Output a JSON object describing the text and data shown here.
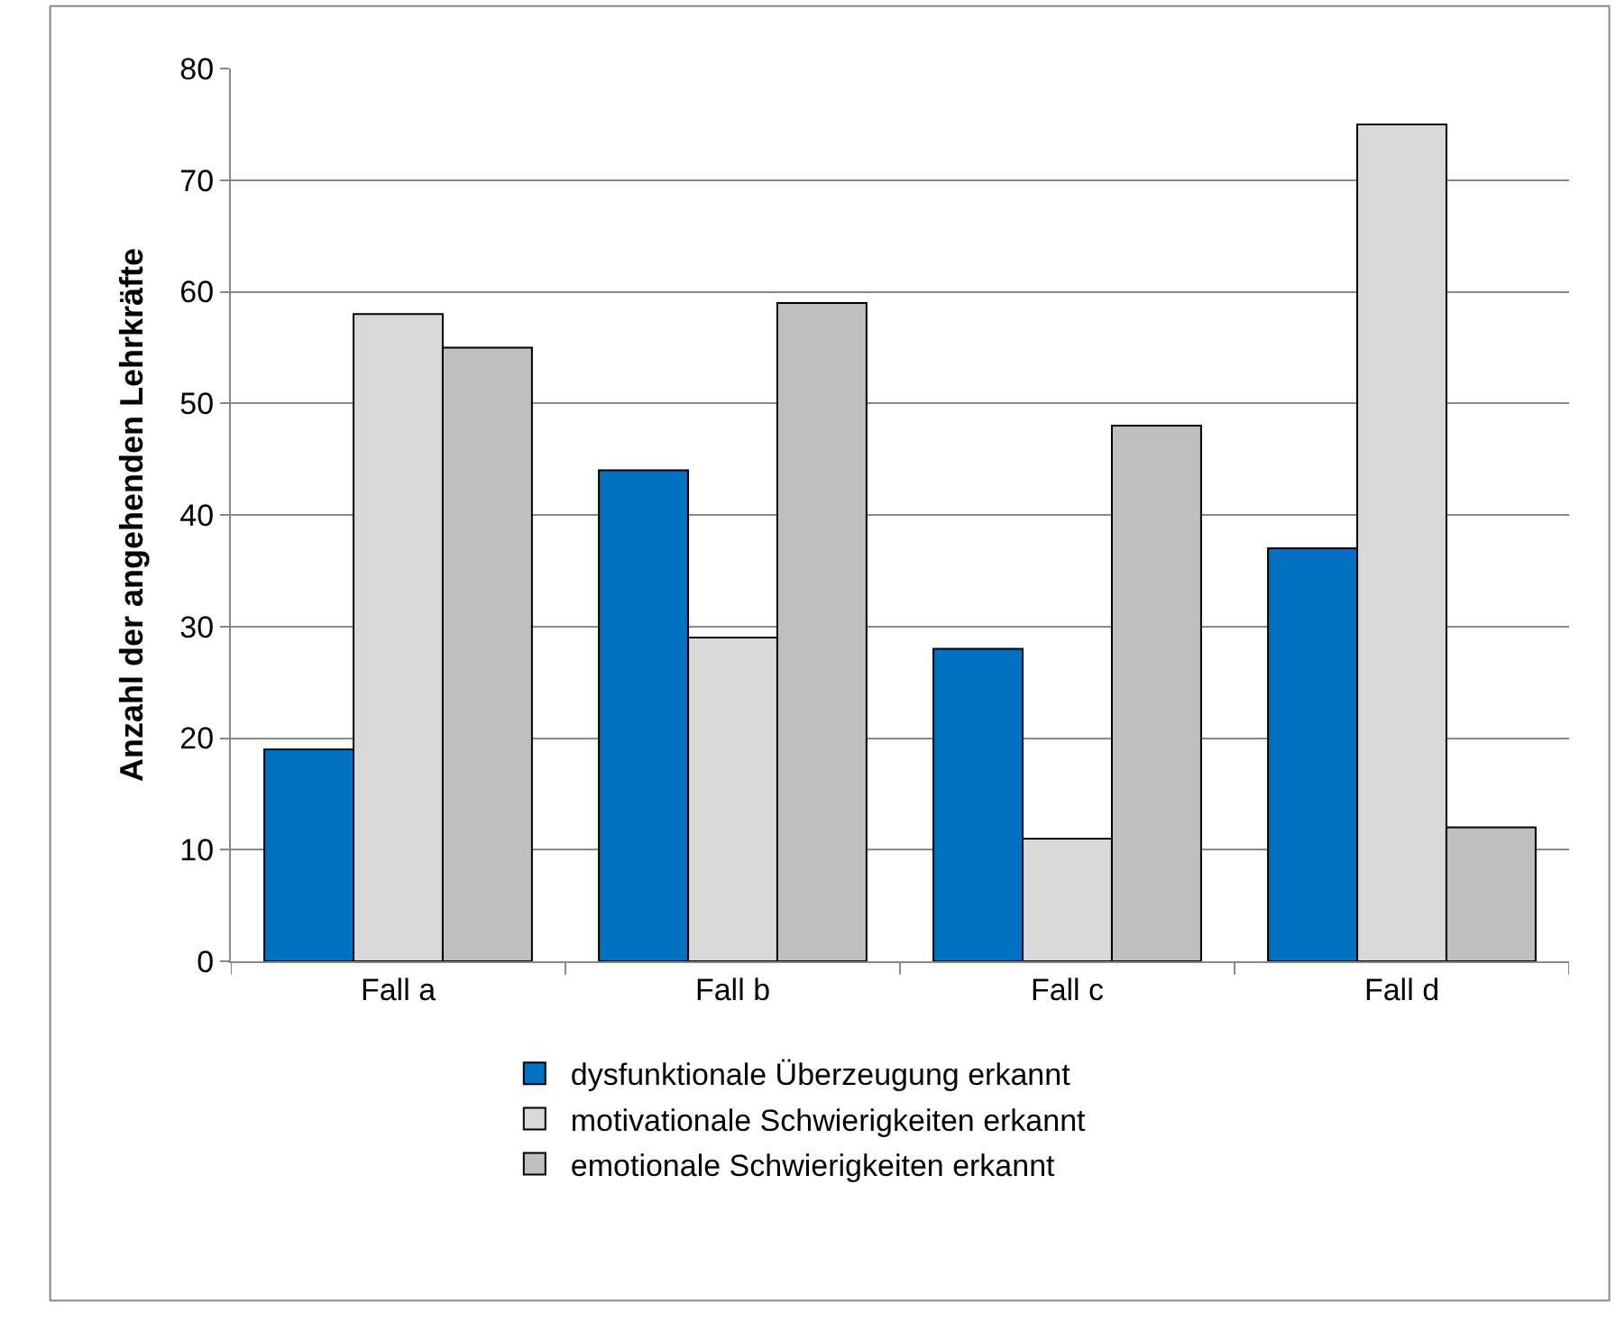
{
  "chart_data": {
    "type": "bar",
    "ylabel": "Anzahl der angehenden Lehrkräfte",
    "categories": [
      "Fall a",
      "Fall b",
      "Fall c",
      "Fall d"
    ],
    "series": [
      {
        "name": "dysfunktionale Überzeugung erkannt",
        "color": "#0070c0",
        "values": [
          19,
          44,
          28,
          37
        ]
      },
      {
        "name": "motivationale Schwierigkeiten erkannt",
        "color": "#d9d9d9",
        "values": [
          58,
          29,
          11,
          75
        ]
      },
      {
        "name": "emotionale Schwierigkeiten erkannt",
        "color": "#bfbfbf",
        "values": [
          55,
          59,
          48,
          12
        ]
      }
    ],
    "ylim": [
      0,
      80
    ],
    "yticks": [
      0,
      10,
      20,
      30,
      40,
      50,
      60,
      70,
      80
    ],
    "grid": "y",
    "legend": "bottom"
  }
}
